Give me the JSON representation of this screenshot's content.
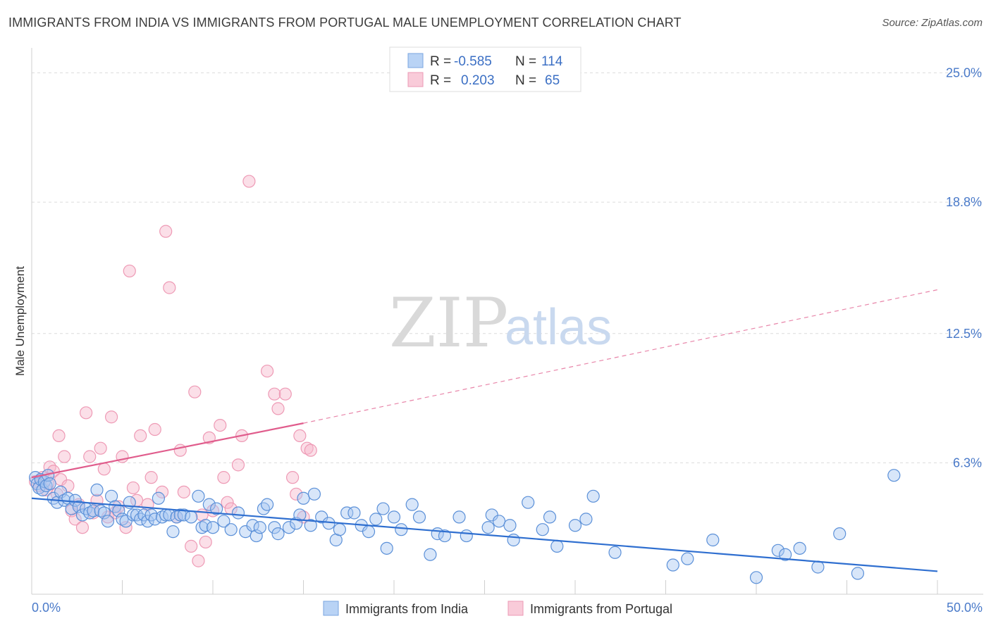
{
  "header": {
    "title": "IMMIGRANTS FROM INDIA VS IMMIGRANTS FROM PORTUGAL MALE UNEMPLOYMENT CORRELATION CHART",
    "source": "Source: ZipAtlas.com"
  },
  "watermark": {
    "zip": "ZIP",
    "atlas": "atlas"
  },
  "legend": {
    "rows": [
      {
        "r_label": "R = ",
        "r_value": "-0.585",
        "n_label": "N = ",
        "n_value": "114",
        "color": "#a9c8f2"
      },
      {
        "r_label": "R = ",
        "r_value": "0.203",
        "n_label": "N = ",
        "n_value": "65",
        "color": "#f6b8cb"
      }
    ]
  },
  "bottom_legend": {
    "items": [
      {
        "label": "Immigrants from India",
        "color": "#a9c8f2"
      },
      {
        "label": "Immigrants from Portugal",
        "color": "#f6b8cb"
      }
    ]
  },
  "chart_data": {
    "type": "scatter",
    "title": "IMMIGRANTS FROM INDIA VS IMMIGRANTS FROM PORTUGAL MALE UNEMPLOYMENT CORRELATION CHART",
    "xlabel": "",
    "ylabel": "Male Unemployment",
    "xlim": [
      0,
      50
    ],
    "ylim": [
      0,
      26.2
    ],
    "x_tick_labels": [
      "0.0%",
      "50.0%"
    ],
    "y_tick_values": [
      6.3,
      12.5,
      18.8,
      25.0
    ],
    "y_tick_labels": [
      "6.3%",
      "12.5%",
      "18.8%",
      "25.0%"
    ],
    "colors": {
      "india": "#4a86d8",
      "portugal": "#ee7ba0",
      "india_line": "#2f6fd0",
      "portugal_line": "#e05c8c"
    },
    "series": [
      {
        "name": "Immigrants from India",
        "r": -0.585,
        "n": 114,
        "trend": {
          "x": [
            0,
            50
          ],
          "y": [
            4.6,
            1.1
          ],
          "style": "solid"
        },
        "points": [
          [
            0.2,
            5.6
          ],
          [
            0.3,
            5.3
          ],
          [
            0.4,
            5.1
          ],
          [
            0.5,
            5.5
          ],
          [
            0.6,
            5.0
          ],
          [
            0.7,
            5.4
          ],
          [
            0.8,
            5.2
          ],
          [
            0.9,
            5.7
          ],
          [
            1.0,
            5.3
          ],
          [
            1.2,
            4.6
          ],
          [
            1.4,
            4.4
          ],
          [
            1.6,
            4.9
          ],
          [
            1.8,
            4.5
          ],
          [
            2.0,
            4.6
          ],
          [
            2.2,
            4.1
          ],
          [
            2.4,
            4.5
          ],
          [
            2.6,
            4.2
          ],
          [
            2.8,
            3.8
          ],
          [
            3.0,
            4.1
          ],
          [
            3.2,
            3.9
          ],
          [
            3.4,
            4.0
          ],
          [
            3.6,
            5.0
          ],
          [
            3.8,
            4.0
          ],
          [
            4.0,
            3.9
          ],
          [
            4.2,
            3.5
          ],
          [
            4.4,
            4.7
          ],
          [
            4.6,
            4.2
          ],
          [
            4.8,
            4.0
          ],
          [
            5.0,
            3.6
          ],
          [
            5.2,
            3.5
          ],
          [
            5.4,
            4.4
          ],
          [
            5.6,
            3.8
          ],
          [
            5.8,
            3.8
          ],
          [
            6.0,
            3.6
          ],
          [
            6.2,
            3.8
          ],
          [
            6.4,
            3.5
          ],
          [
            6.6,
            3.8
          ],
          [
            6.8,
            3.6
          ],
          [
            7.0,
            4.6
          ],
          [
            7.2,
            3.7
          ],
          [
            7.4,
            3.8
          ],
          [
            7.6,
            3.8
          ],
          [
            7.8,
            3.0
          ],
          [
            8.0,
            3.7
          ],
          [
            8.2,
            3.8
          ],
          [
            8.4,
            3.8
          ],
          [
            8.8,
            3.7
          ],
          [
            9.2,
            4.7
          ],
          [
            9.4,
            3.2
          ],
          [
            9.6,
            3.3
          ],
          [
            9.8,
            4.3
          ],
          [
            10.0,
            3.2
          ],
          [
            10.2,
            4.1
          ],
          [
            10.6,
            3.5
          ],
          [
            11.0,
            3.1
          ],
          [
            11.4,
            3.9
          ],
          [
            11.8,
            3.0
          ],
          [
            12.2,
            3.3
          ],
          [
            12.4,
            2.8
          ],
          [
            12.6,
            3.2
          ],
          [
            12.8,
            4.1
          ],
          [
            13.0,
            4.3
          ],
          [
            13.4,
            3.2
          ],
          [
            13.6,
            2.9
          ],
          [
            14.2,
            3.2
          ],
          [
            14.6,
            3.4
          ],
          [
            14.8,
            3.8
          ],
          [
            15.0,
            4.6
          ],
          [
            15.4,
            3.3
          ],
          [
            15.6,
            4.8
          ],
          [
            16.0,
            3.7
          ],
          [
            16.4,
            3.4
          ],
          [
            16.8,
            2.6
          ],
          [
            17.0,
            3.1
          ],
          [
            17.4,
            3.9
          ],
          [
            17.8,
            3.9
          ],
          [
            18.2,
            3.3
          ],
          [
            18.6,
            3.0
          ],
          [
            19.0,
            3.6
          ],
          [
            19.4,
            4.1
          ],
          [
            19.6,
            2.2
          ],
          [
            20.0,
            3.7
          ],
          [
            20.4,
            3.1
          ],
          [
            21.0,
            4.3
          ],
          [
            21.4,
            3.7
          ],
          [
            22.0,
            1.9
          ],
          [
            22.4,
            2.9
          ],
          [
            22.8,
            2.8
          ],
          [
            23.6,
            3.7
          ],
          [
            24.0,
            2.8
          ],
          [
            25.2,
            3.2
          ],
          [
            25.4,
            3.8
          ],
          [
            25.8,
            3.5
          ],
          [
            26.4,
            3.3
          ],
          [
            26.6,
            2.6
          ],
          [
            27.4,
            4.4
          ],
          [
            28.2,
            3.1
          ],
          [
            28.6,
            3.7
          ],
          [
            29.0,
            2.3
          ],
          [
            30.0,
            3.3
          ],
          [
            30.6,
            3.6
          ],
          [
            31.0,
            4.7
          ],
          [
            32.2,
            2.0
          ],
          [
            35.4,
            1.4
          ],
          [
            36.2,
            1.7
          ],
          [
            37.6,
            2.6
          ],
          [
            40.0,
            0.8
          ],
          [
            41.2,
            2.1
          ],
          [
            41.6,
            1.9
          ],
          [
            42.4,
            2.2
          ],
          [
            43.4,
            1.3
          ],
          [
            44.6,
            2.9
          ],
          [
            45.6,
            1.0
          ],
          [
            47.6,
            5.7
          ]
        ]
      },
      {
        "name": "Immigrants from Portugal",
        "r": 0.203,
        "n": 65,
        "trend": {
          "x": [
            0,
            15
          ],
          "y": [
            5.6,
            8.2
          ],
          "style": "solid",
          "extended": {
            "x": [
              15,
              50
            ],
            "y": [
              8.2,
              14.6
            ],
            "style": "dashed"
          }
        },
        "points": [
          [
            0.2,
            5.4
          ],
          [
            0.4,
            5.2
          ],
          [
            0.6,
            5.6
          ],
          [
            0.8,
            5.0
          ],
          [
            0.9,
            5.3
          ],
          [
            1.0,
            6.1
          ],
          [
            1.2,
            5.9
          ],
          [
            1.4,
            4.8
          ],
          [
            1.5,
            7.6
          ],
          [
            1.6,
            5.5
          ],
          [
            1.8,
            6.6
          ],
          [
            2.0,
            5.2
          ],
          [
            2.2,
            4.0
          ],
          [
            2.4,
            3.6
          ],
          [
            2.6,
            4.3
          ],
          [
            2.8,
            3.2
          ],
          [
            3.0,
            8.7
          ],
          [
            3.2,
            6.6
          ],
          [
            3.4,
            3.9
          ],
          [
            3.6,
            4.5
          ],
          [
            3.8,
            7.0
          ],
          [
            4.0,
            6.0
          ],
          [
            4.2,
            3.7
          ],
          [
            4.4,
            8.5
          ],
          [
            4.6,
            3.9
          ],
          [
            4.8,
            4.2
          ],
          [
            5.0,
            6.6
          ],
          [
            5.2,
            3.2
          ],
          [
            5.4,
            15.5
          ],
          [
            5.6,
            5.1
          ],
          [
            5.8,
            4.5
          ],
          [
            6.0,
            7.6
          ],
          [
            6.4,
            4.3
          ],
          [
            6.6,
            5.6
          ],
          [
            6.8,
            7.9
          ],
          [
            7.2,
            4.9
          ],
          [
            7.4,
            17.4
          ],
          [
            7.6,
            14.7
          ],
          [
            8.0,
            3.7
          ],
          [
            8.2,
            6.9
          ],
          [
            8.4,
            4.9
          ],
          [
            8.8,
            2.3
          ],
          [
            9.0,
            9.7
          ],
          [
            9.2,
            1.6
          ],
          [
            9.4,
            3.8
          ],
          [
            9.6,
            2.5
          ],
          [
            9.8,
            7.5
          ],
          [
            10.0,
            4.0
          ],
          [
            10.4,
            8.1
          ],
          [
            10.6,
            5.6
          ],
          [
            10.8,
            4.4
          ],
          [
            11.0,
            4.1
          ],
          [
            11.4,
            6.2
          ],
          [
            11.6,
            7.6
          ],
          [
            12.0,
            19.8
          ],
          [
            13.0,
            10.7
          ],
          [
            13.4,
            9.6
          ],
          [
            13.6,
            8.9
          ],
          [
            14.0,
            9.6
          ],
          [
            14.4,
            5.6
          ],
          [
            14.6,
            4.8
          ],
          [
            14.8,
            7.6
          ],
          [
            15.0,
            3.7
          ],
          [
            15.2,
            7.0
          ],
          [
            15.4,
            6.9
          ]
        ]
      }
    ]
  }
}
